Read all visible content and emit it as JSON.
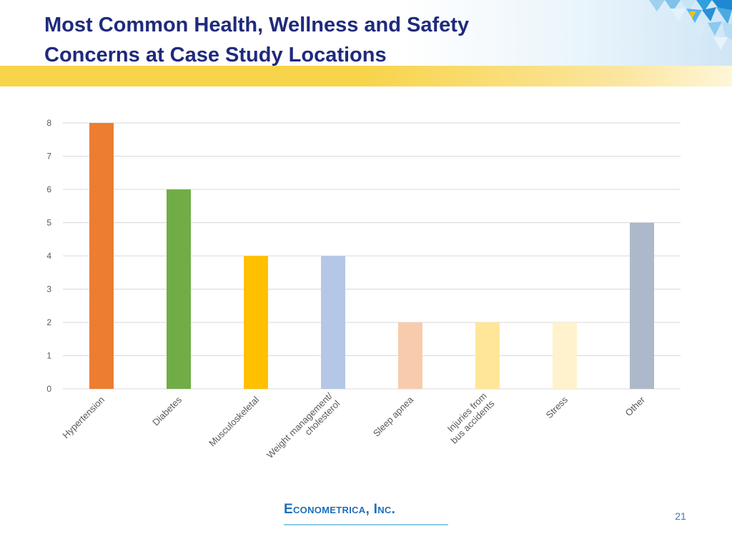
{
  "slide": {
    "title_lines": [
      "Most Common Health, Wellness and Safety",
      "Concerns at Case Study Locations"
    ],
    "logo_text": "Econometrica, Inc.",
    "page_number": "21"
  },
  "colors": {
    "title": "#1f2a7c",
    "gold_bar": "#f8d44b",
    "gridline": "#d9d9d9",
    "axis_text": "#595959"
  },
  "chart_data": {
    "type": "bar",
    "categories": [
      [
        "Hypertension"
      ],
      [
        "Diabetes"
      ],
      [
        "Musculoskeletal"
      ],
      [
        "Weight management/",
        "cholesterol"
      ],
      [
        "Sleep apnea"
      ],
      [
        "Injuries from",
        "bus accidents"
      ],
      [
        "Stress"
      ],
      [
        "Other"
      ]
    ],
    "values": [
      8,
      6,
      4,
      4,
      2,
      2,
      2,
      5
    ],
    "bar_colors": [
      "#ed7d31",
      "#70ad47",
      "#ffc000",
      "#b4c7e7",
      "#f8cbad",
      "#ffe699",
      "#fff2cc",
      "#adb9ca"
    ],
    "yticks": [
      0,
      1,
      2,
      3,
      4,
      5,
      6,
      7,
      8
    ],
    "ylim": [
      0,
      8
    ],
    "grid": true,
    "legend": "none"
  }
}
